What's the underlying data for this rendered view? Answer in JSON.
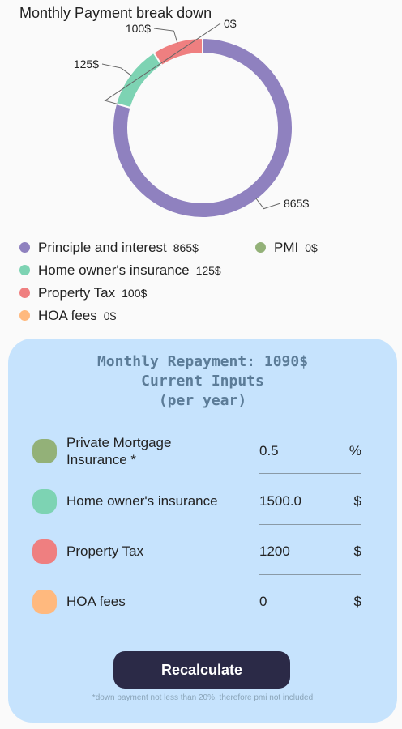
{
  "colors": {
    "principle": "#8f81bf",
    "pmi": "#93b178",
    "insurance": "#7dd3b3",
    "tax": "#ef7f80",
    "hoa": "#ffb97e",
    "panel": "#c6e3fd",
    "button": "#2b2a47"
  },
  "chart_data": {
    "type": "pie",
    "title": "Monthly Payment break down",
    "slices": [
      {
        "name": "Principle and interest",
        "value": 865,
        "label": "865$",
        "color": "#8f81bf"
      },
      {
        "name": "PMI",
        "value": 0,
        "label": "0$",
        "color": "#93b178"
      },
      {
        "name": "Home owner's insurance",
        "value": 125,
        "label": "125$",
        "color": "#7dd3b3"
      },
      {
        "name": "Property Tax",
        "value": 100,
        "label": "100$",
        "color": "#ef7f80"
      },
      {
        "name": "HOA fees",
        "value": 0,
        "label": "0$",
        "color": "#ffb97e"
      }
    ]
  },
  "legend": [
    {
      "label": "Principle and interest",
      "value": "865$"
    },
    {
      "label": "PMI",
      "value": "0$"
    },
    {
      "label": "Home owner's insurance",
      "value": "125$"
    },
    {
      "label": "Property Tax",
      "value": "100$"
    },
    {
      "label": "HOA fees",
      "value": "0$"
    }
  ],
  "panel": {
    "repayment": "Monthly Repayment: 1090$",
    "inputs_title": "Current Inputs",
    "per_year": "(per year)",
    "rows": [
      {
        "label": "Private Mortgage Insurance *",
        "value": "0.5",
        "unit": "%"
      },
      {
        "label": "Home owner's insurance",
        "value": "1500.0",
        "unit": "$"
      },
      {
        "label": "Property Tax",
        "value": "1200",
        "unit": "$"
      },
      {
        "label": "HOA fees",
        "value": "0",
        "unit": "$"
      }
    ],
    "button_label": "Recalculate",
    "footnote": "*down payment not less than 20%, therefore pmi not included"
  }
}
